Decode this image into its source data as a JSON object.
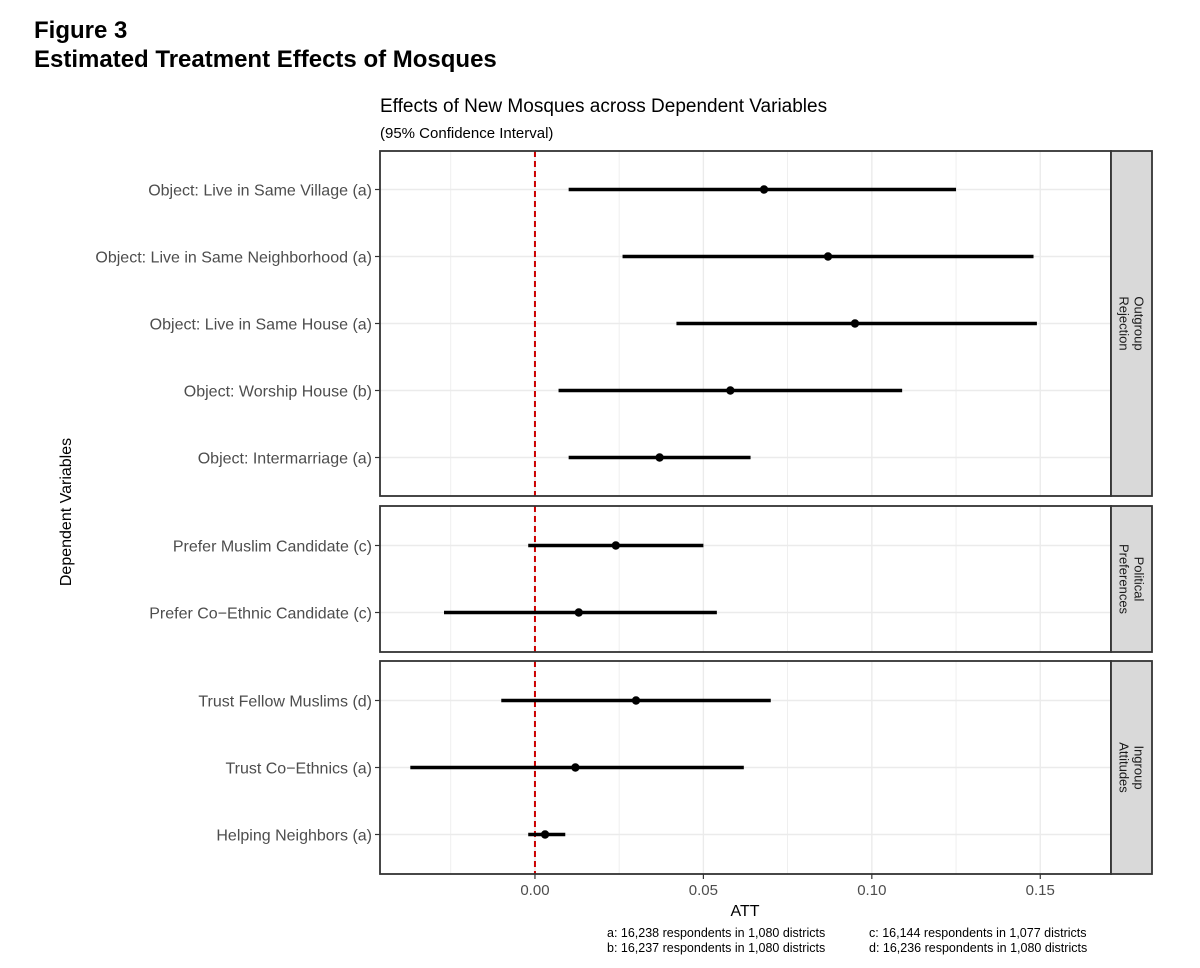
{
  "figure": {
    "number": "Figure 3",
    "title": "Estimated Treatment Effects of Mosques"
  },
  "chart_data": {
    "type": "scatter",
    "subtype": "coefficient plot with 95% confidence intervals",
    "title": "Effects of New Mosques across Dependent Variables",
    "subtitle": "(95% Confidence Interval)",
    "xlabel": "ATT",
    "ylabel": "Dependent Variables",
    "xlim": [
      -0.046,
      0.171
    ],
    "x_ticks": [
      0.0,
      0.05,
      0.1,
      0.15
    ],
    "x_tick_labels": [
      "0.00",
      "0.05",
      "0.10",
      "0.15"
    ],
    "reference_line": {
      "x": 0,
      "style": "dashed",
      "color": "#cc0000"
    },
    "grid": true,
    "colors": {
      "point": "#000000",
      "panel_strip": "#d9d9d9",
      "grid": "#ebebeb",
      "reference": "#cc0000"
    },
    "panels": [
      {
        "label": "Outgroup Rejection",
        "label_lines": [
          "Outgroup",
          "Rejection"
        ],
        "items": [
          {
            "label": "Object: Live in Same Village (a)",
            "estimate": 0.068,
            "ci_low": 0.01,
            "ci_high": 0.125
          },
          {
            "label": "Object: Live in Same Neighborhood (a)",
            "estimate": 0.087,
            "ci_low": 0.026,
            "ci_high": 0.148
          },
          {
            "label": "Object: Live in Same House (a)",
            "estimate": 0.095,
            "ci_low": 0.042,
            "ci_high": 0.149
          },
          {
            "label": "Object: Worship House (b)",
            "estimate": 0.058,
            "ci_low": 0.007,
            "ci_high": 0.109
          },
          {
            "label": "Object: Intermarriage (a)",
            "estimate": 0.037,
            "ci_low": 0.01,
            "ci_high": 0.064
          }
        ]
      },
      {
        "label": "Political Preferences",
        "label_lines": [
          "Political",
          "Preferences"
        ],
        "items": [
          {
            "label": "Prefer Muslim Candidate (c)",
            "estimate": 0.024,
            "ci_low": -0.002,
            "ci_high": 0.05
          },
          {
            "label": "Prefer Co−Ethnic Candidate (c)",
            "estimate": 0.013,
            "ci_low": -0.027,
            "ci_high": 0.054
          }
        ]
      },
      {
        "label": "Ingroup Attitudes",
        "label_lines": [
          "Ingroup",
          "Attitudes"
        ],
        "items": [
          {
            "label": "Trust Fellow Muslims (d)",
            "estimate": 0.03,
            "ci_low": -0.01,
            "ci_high": 0.07
          },
          {
            "label": "Trust Co−Ethnics (a)",
            "estimate": 0.012,
            "ci_low": -0.037,
            "ci_high": 0.062
          },
          {
            "label": "Helping Neighbors (a)",
            "estimate": 0.003,
            "ci_low": -0.002,
            "ci_high": 0.009
          }
        ]
      }
    ],
    "notes": [
      "a: 16,238 respondents in 1,080 districts",
      "b: 16,237 respondents in 1,080 districts",
      "c: 16,144 respondents in 1,077 districts",
      "d: 16,236 respondents in 1,080 districts"
    ]
  }
}
